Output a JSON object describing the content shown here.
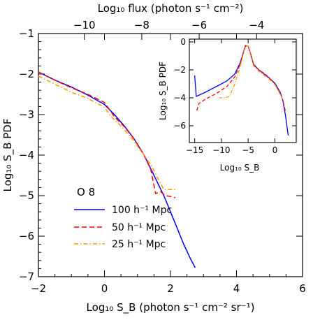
{
  "chart_data": [
    {
      "type": "line",
      "xlabel": "Log₁₀ S_B (photon s⁻¹ cm⁻² sr⁻¹)",
      "ylabel": "Log₁₀ S_B PDF",
      "top_xlabel": "Log₁₀ flux (photon s⁻¹ cm⁻²)",
      "xlim": [
        -2,
        6
      ],
      "ylim": [
        -7,
        -1
      ],
      "top_xlim": [
        -11.6,
        -2.4
      ],
      "xticks": [
        -2,
        0,
        2,
        4,
        6
      ],
      "yticks": [
        -7,
        -6,
        -5,
        -4,
        -3,
        -2,
        -1
      ],
      "top_xticks": [
        -10,
        -8,
        -6,
        -4
      ],
      "legend_title": "O 8",
      "legend_position": "lower-left",
      "series": [
        {
          "name": "100 h⁻¹ Mpc",
          "color": "#0000ff",
          "dash": "solid",
          "x": [
            -2.0,
            -1.5,
            -1.0,
            -0.5,
            0.0,
            0.3,
            0.6,
            0.9,
            1.2,
            1.5,
            1.8,
            2.0,
            2.2,
            2.4,
            2.6,
            2.75
          ],
          "y": [
            -1.95,
            -2.15,
            -2.32,
            -2.52,
            -2.75,
            -3.0,
            -3.28,
            -3.6,
            -4.0,
            -4.5,
            -5.0,
            -5.4,
            -5.8,
            -6.2,
            -6.55,
            -6.78
          ]
        },
        {
          "name": "50 h⁻¹ Mpc",
          "color": "#ff0000",
          "dash": "dashed",
          "x": [
            -2.0,
            -1.5,
            -1.0,
            -0.5,
            0.0,
            0.3,
            0.6,
            0.9,
            1.2,
            1.4,
            1.55,
            1.7,
            1.85,
            2.0,
            2.15
          ],
          "y": [
            -1.95,
            -2.15,
            -2.34,
            -2.5,
            -2.7,
            -3.05,
            -3.3,
            -3.6,
            -4.0,
            -4.35,
            -4.95,
            -4.9,
            -5.0,
            -5.02,
            -5.05
          ]
        },
        {
          "name": "25 h⁻¹ Mpc",
          "color": "#ff9900",
          "dash": "dashdot",
          "x": [
            -2.0,
            -1.5,
            -1.0,
            -0.5,
            0.0,
            0.2,
            0.4,
            0.8,
            1.2,
            1.45,
            1.6,
            1.8,
            2.0,
            2.2
          ],
          "y": [
            -2.05,
            -2.25,
            -2.45,
            -2.6,
            -2.82,
            -3.05,
            -3.2,
            -3.55,
            -4.0,
            -4.3,
            -4.55,
            -4.85,
            -4.85,
            -4.85
          ]
        }
      ]
    },
    {
      "type": "line",
      "xlabel": "Log₁₀ S_B",
      "ylabel": "Log₁₀ S_B PDF",
      "xlim": [
        -16,
        4
      ],
      "ylim": [
        -7.2,
        0.2
      ],
      "xticks": [
        -15,
        -10,
        -5,
        0
      ],
      "yticks": [
        -6,
        -4,
        -2,
        0
      ],
      "series": [
        {
          "name": "100 h⁻¹ Mpc",
          "color": "#0000ff",
          "dash": "solid",
          "x": [
            -15.0,
            -14.7,
            -13.0,
            -11.0,
            -9.0,
            -7.5,
            -6.5,
            -6.0,
            -5.5,
            -5.0,
            -4.5,
            -4.0,
            -3.0,
            -2.0,
            -1.0,
            0.0,
            1.0,
            1.5,
            2.0,
            2.5
          ],
          "y": [
            -2.4,
            -3.9,
            -3.6,
            -3.2,
            -2.8,
            -2.3,
            -1.5,
            -0.9,
            -0.3,
            -0.3,
            -0.9,
            -1.6,
            -2.0,
            -2.3,
            -2.6,
            -2.95,
            -3.6,
            -4.2,
            -5.3,
            -6.7
          ]
        },
        {
          "name": "50 h⁻¹ Mpc",
          "color": "#ff0000",
          "dash": "dashed",
          "x": [
            -14.6,
            -14.2,
            -13.0,
            -11.0,
            -9.0,
            -7.5,
            -6.5,
            -6.0,
            -5.5,
            -5.0,
            -4.5,
            -4.0,
            -3.0,
            -2.0,
            -1.0,
            0.0,
            1.0,
            1.5,
            2.0
          ],
          "y": [
            -4.9,
            -4.4,
            -4.1,
            -3.7,
            -3.2,
            -2.5,
            -1.6,
            -0.9,
            -0.25,
            -0.3,
            -0.9,
            -1.6,
            -2.0,
            -2.25,
            -2.6,
            -3.0,
            -3.7,
            -4.2,
            -5.0
          ]
        },
        {
          "name": "25 h⁻¹ Mpc",
          "color": "#ff9900",
          "dash": "dashdot",
          "x": [
            -10.5,
            -9.5,
            -8.5,
            -7.5,
            -6.5,
            -6.0,
            -5.5,
            -5.0,
            -4.5,
            -4.0,
            -3.0,
            -2.0,
            -1.0,
            0.0,
            1.0,
            1.5
          ],
          "y": [
            -4.0,
            -4.0,
            -3.9,
            -3.0,
            -1.8,
            -1.0,
            -0.3,
            -0.3,
            -1.0,
            -1.7,
            -2.1,
            -2.4,
            -2.7,
            -3.05,
            -3.7,
            -4.2
          ]
        }
      ]
    }
  ]
}
